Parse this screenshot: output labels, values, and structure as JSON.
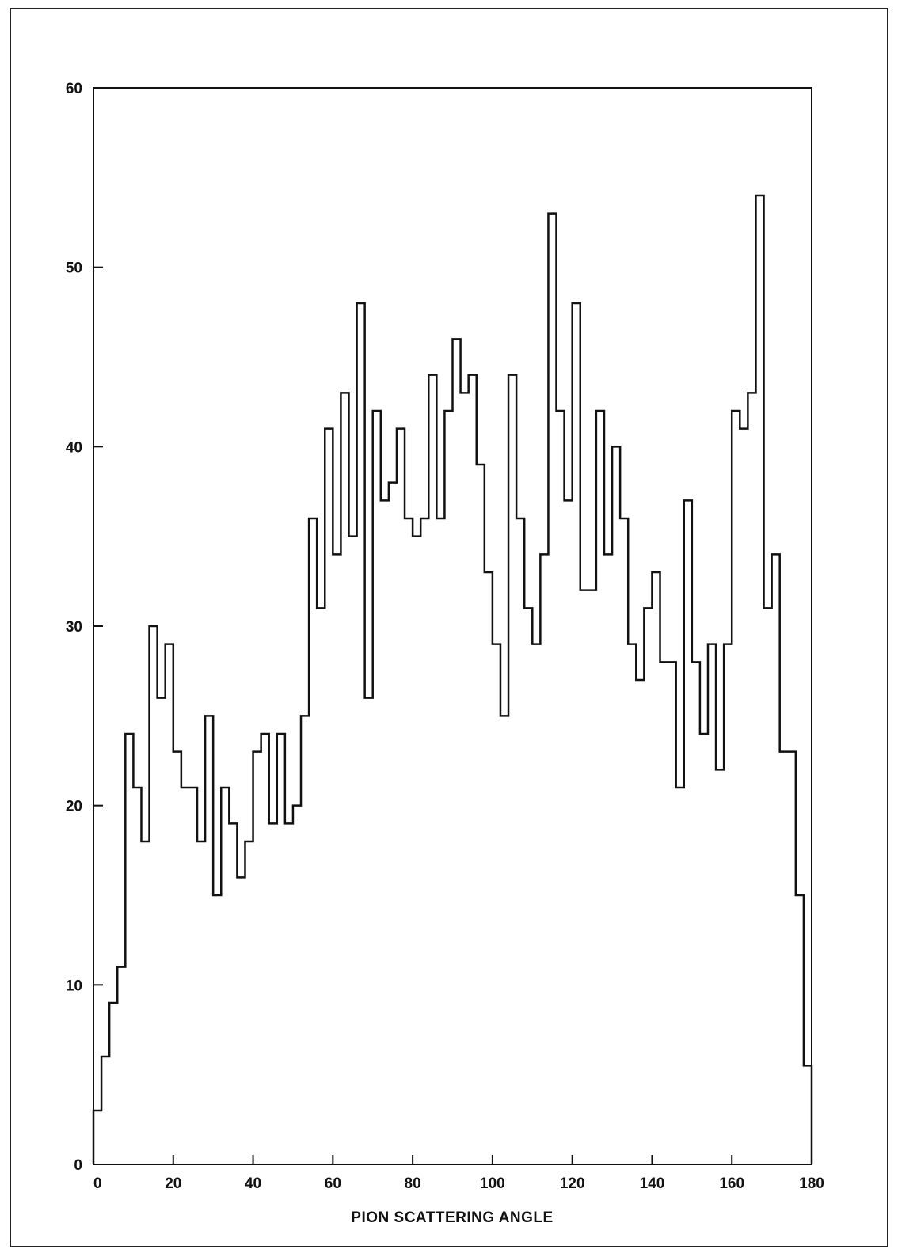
{
  "chart_data": {
    "type": "bar",
    "title": "",
    "xlabel": "PION SCATTERING ANGLE",
    "ylabel": "",
    "xlim": [
      0,
      180
    ],
    "ylim": [
      0,
      60
    ],
    "xticks": [
      0,
      20,
      40,
      60,
      80,
      100,
      120,
      140,
      160,
      180
    ],
    "yticks": [
      0,
      10,
      20,
      30,
      40,
      50,
      60
    ],
    "grid": false,
    "legend": "none",
    "line_color": "#111111",
    "bin_edges": [
      0,
      2,
      4,
      6,
      8,
      10,
      12,
      14,
      16,
      18,
      20,
      22,
      24,
      26,
      28,
      30,
      32,
      34,
      36,
      38,
      40,
      42,
      44,
      46,
      48,
      50,
      52,
      54,
      56,
      58,
      60,
      62,
      64,
      66,
      68,
      70,
      72,
      74,
      76,
      78,
      80,
      82,
      84,
      86,
      88,
      90,
      92,
      94,
      96,
      98,
      100,
      102,
      104,
      106,
      108,
      110,
      112,
      114,
      116,
      118,
      120,
      122,
      124,
      126,
      128,
      130,
      132,
      134,
      136,
      138,
      140,
      142,
      144,
      146,
      148,
      150,
      152,
      154,
      156,
      158,
      160,
      162,
      164,
      166,
      168,
      170,
      172,
      174,
      176,
      178,
      180
    ],
    "values": [
      3,
      6,
      9,
      11,
      24,
      21,
      18,
      30,
      26,
      29,
      23,
      21,
      21,
      18,
      25,
      15,
      21,
      19,
      16,
      18,
      23,
      24,
      19,
      24,
      19,
      20,
      25,
      36,
      31,
      41,
      34,
      43,
      35,
      48,
      26,
      42,
      37,
      38,
      41,
      36,
      35,
      36,
      44,
      36,
      42,
      46,
      43,
      44,
      39,
      33,
      29,
      25,
      44,
      36,
      31,
      29,
      34,
      53,
      42,
      37,
      48,
      32,
      32,
      42,
      34,
      40,
      36,
      29,
      27,
      31,
      33,
      28,
      28,
      21,
      37,
      28,
      24,
      29,
      22,
      29,
      42,
      41,
      43,
      54,
      31,
      34,
      23,
      23,
      15,
      5.5
    ]
  }
}
